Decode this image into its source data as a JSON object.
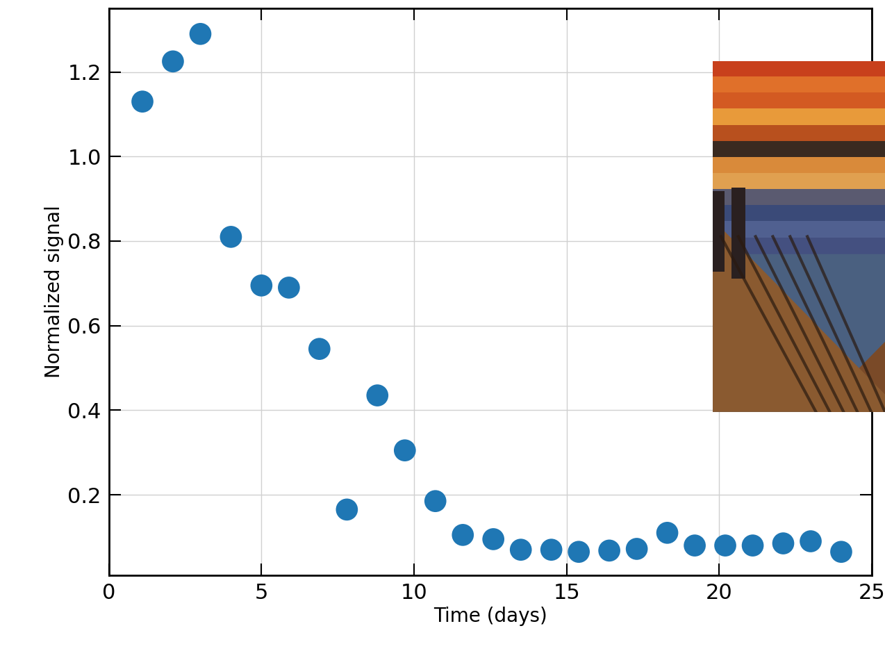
{
  "chart_data": {
    "type": "scatter",
    "x_label": "Time (days)",
    "y_label": "Normalized signal",
    "x": [
      1.1,
      2.1,
      3.0,
      4.0,
      5.0,
      5.9,
      6.9,
      7.8,
      8.8,
      9.7,
      10.7,
      11.6,
      12.6,
      13.5,
      14.5,
      15.4,
      16.4,
      17.3,
      18.3,
      19.2,
      20.2,
      21.1,
      22.1,
      23.0,
      24.0
    ],
    "values": [
      1.13,
      1.225,
      1.29,
      0.81,
      0.695,
      0.69,
      0.545,
      0.165,
      0.435,
      0.305,
      0.185,
      0.105,
      0.095,
      0.07,
      0.07,
      0.065,
      0.068,
      0.072,
      0.11,
      0.08,
      0.08,
      0.08,
      0.085,
      0.09,
      0.065
    ],
    "color": "#1f77b4",
    "marker": "circle",
    "xlim": [
      0,
      25
    ],
    "xticks": [
      0,
      5,
      10,
      15,
      20,
      25
    ],
    "ylim": [
      0.01,
      1.35
    ],
    "yticks": [
      0.2,
      0.4,
      0.6,
      0.8,
      1.0,
      1.2
    ],
    "grid": true
  }
}
